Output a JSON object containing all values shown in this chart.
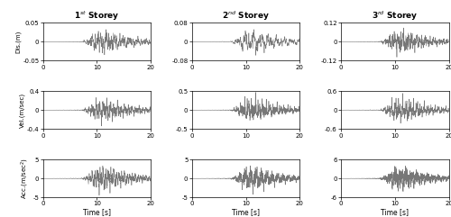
{
  "titles": [
    "1$^{st}$ Storey",
    "2$^{nd}$ Storey",
    "3$^{rd}$ Storey"
  ],
  "ylabels": [
    "Dis.(m)",
    "Vel.(m/sec)",
    "Acc.(m/sec$^2$)"
  ],
  "xlabel": "Time [s]",
  "xlim": [
    0,
    20
  ],
  "ylims": [
    [
      [
        -0.05,
        0.05
      ],
      [
        -0.08,
        0.08
      ],
      [
        -0.12,
        0.12
      ]
    ],
    [
      [
        -0.4,
        0.4
      ],
      [
        -0.5,
        0.5
      ],
      [
        -0.6,
        0.6
      ]
    ],
    [
      [
        -5,
        5
      ],
      [
        -5,
        5
      ],
      [
        -6,
        6
      ]
    ]
  ],
  "yticks": [
    [
      [
        -0.05,
        0,
        0.05
      ],
      [
        -0.08,
        0,
        0.08
      ],
      [
        -0.12,
        0,
        0.12
      ]
    ],
    [
      [
        -0.4,
        0,
        0.4
      ],
      [
        -0.5,
        0,
        0.5
      ],
      [
        -0.6,
        0,
        0.6
      ]
    ],
    [
      [
        -5,
        0,
        5
      ],
      [
        -5,
        0,
        5
      ],
      [
        -6,
        0,
        6
      ]
    ]
  ],
  "ytick_labels": [
    [
      [
        "-0.05",
        "0",
        "0.05"
      ],
      [
        "-0.08",
        "0",
        "0.08"
      ],
      [
        "-0.12",
        "0",
        "0.12"
      ]
    ],
    [
      [
        "-0.4",
        "0",
        "0.4"
      ],
      [
        "-0.5",
        "0",
        "0.5"
      ],
      [
        "-0.6",
        "0",
        "0.6"
      ]
    ],
    [
      [
        "-5",
        "0",
        "5"
      ],
      [
        "-5",
        "0",
        "5"
      ],
      [
        "-6",
        "0",
        "6"
      ]
    ]
  ],
  "line_color": "#777777",
  "line_width": 0.4,
  "dt": 0.01,
  "duration": 20.0
}
